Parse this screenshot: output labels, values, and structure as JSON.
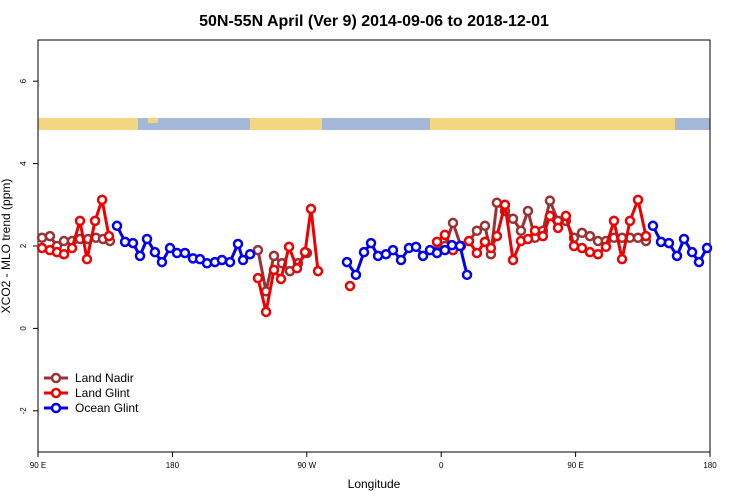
{
  "chart_data": {
    "type": "line",
    "title": "50N-55N April (Ver 9)   2014-09-06 to 2018-12-01",
    "x_label": "Longitude",
    "y_label": "XCO2 - MLO trend (ppm)",
    "xlim": [
      90,
      540
    ],
    "ylim": [
      -3,
      7
    ],
    "xticks": [
      {
        "value": 90,
        "label": "90 E"
      },
      180,
      {
        "value": 270,
        "label": "90 W"
      },
      {
        "value": 360,
        "label": "0"
      },
      {
        "value": 450,
        "label": "90 E"
      },
      {
        "value": 540,
        "label": "180"
      }
    ],
    "yticks": [
      -2,
      0,
      2,
      4,
      6
    ],
    "legend": "bottomleft",
    "series": [
      {
        "name": "Land Nadir",
        "color": "#993333",
        "x": [
          92.7,
          98.0,
          102.7,
          107.4,
          112.8,
          118.1,
          123.5,
          128.8,
          133.5,
          138.2,
          null,
          237.3,
          242.7,
          248.0,
          253.4,
          258.7,
          264.1,
          270.1,
          null,
          357.2,
          362.5,
          367.9,
          373.2,
          378.6,
          383.9,
          389.3,
          393.3,
          397.3,
          402.7,
          408.1,
          413.4,
          418.1,
          422.8,
          428.1,
          432.8,
          438.2,
          443.5,
          448.9,
          454.3,
          459.6,
          465.0,
          470.3,
          475.7,
          481.1,
          486.4,
          491.8,
          497.1
        ],
        "values": [
          2.2,
          2.24,
          2.0,
          2.12,
          2.12,
          2.17,
          2.17,
          2.2,
          2.17,
          2.12,
          null,
          1.9,
          0.9,
          1.76,
          1.58,
          1.39,
          1.58,
          1.83,
          null,
          1.88,
          2.0,
          2.56,
          2.0,
          2.12,
          2.37,
          2.49,
          1.8,
          3.05,
          2.85,
          2.66,
          2.37,
          2.85,
          2.2,
          2.37,
          3.1,
          2.61,
          2.61,
          2.2,
          2.32,
          2.24,
          2.12,
          2.12,
          2.2,
          2.2,
          2.2,
          2.2,
          2.12
        ]
      },
      {
        "name": "Land Glint",
        "color": "#ee0000",
        "x": [
          92.7,
          98.0,
          102.7,
          107.4,
          112.8,
          118.1,
          122.8,
          128.2,
          132.9,
          137.5,
          null,
          237.3,
          242.7,
          248.0,
          252.7,
          258.1,
          263.4,
          268.8,
          272.8,
          277.5,
          null,
          298.9,
          null,
          357.2,
          362.5,
          367.9,
          373.2,
          378.6,
          383.9,
          389.3,
          393.3,
          397.3,
          402.7,
          408.1,
          413.4,
          418.1,
          422.8,
          428.1,
          432.8,
          438.2,
          443.5,
          448.9,
          454.3,
          459.6,
          465.0,
          470.3,
          475.7,
          481.1,
          486.4,
          491.8,
          497.1
        ],
        "values": [
          1.95,
          1.9,
          1.85,
          1.8,
          1.95,
          2.61,
          1.68,
          2.61,
          3.12,
          2.24,
          null,
          1.22,
          0.4,
          1.42,
          1.2,
          1.98,
          1.46,
          1.85,
          2.9,
          1.39,
          null,
          1.03,
          null,
          2.1,
          2.27,
          1.9,
          2.0,
          2.12,
          1.83,
          2.1,
          1.95,
          2.24,
          3.0,
          1.66,
          2.12,
          2.17,
          2.37,
          2.24,
          2.73,
          2.44,
          2.73,
          2.0,
          1.95,
          1.85,
          1.8,
          1.98,
          2.61,
          1.68,
          2.61,
          3.12,
          2.24
        ]
      },
      {
        "name": "Ocean Glint",
        "color": "#0000ee",
        "x": [
          142.9,
          148.3,
          153.6,
          158.3,
          163.0,
          168.3,
          173.0,
          178.4,
          183.1,
          188.4,
          193.8,
          198.5,
          203.2,
          208.5,
          213.2,
          218.6,
          223.9,
          227.3,
          232.0,
          null,
          296.9,
          302.9,
          308.3,
          313.0,
          317.7,
          323.0,
          327.7,
          333.1,
          338.4,
          343.1,
          347.8,
          352.5,
          357.2,
          362.5,
          367.2,
          372.6,
          377.3,
          null,
          501.8,
          507.2,
          512.5,
          517.9,
          522.6,
          528.0,
          532.6,
          538.0
        ],
        "values": [
          2.49,
          2.1,
          2.07,
          1.76,
          2.17,
          1.85,
          1.61,
          1.95,
          1.83,
          1.83,
          1.7,
          1.68,
          1.58,
          1.61,
          1.66,
          1.61,
          2.05,
          1.66,
          1.8,
          null,
          1.61,
          1.3,
          1.85,
          2.07,
          1.76,
          1.8,
          1.9,
          1.66,
          1.95,
          1.98,
          1.76,
          1.9,
          1.83,
          1.9,
          2.02,
          2.0,
          1.3,
          null,
          2.49,
          2.1,
          2.07,
          1.76,
          2.17,
          1.85,
          1.61,
          1.95
        ]
      }
    ]
  }
}
